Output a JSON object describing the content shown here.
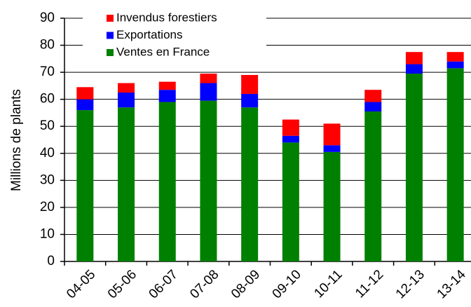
{
  "chart_data": {
    "type": "stacked_bar",
    "y_label": "Millions de plants",
    "categories": [
      "04-05",
      "05-06",
      "06-07",
      "07-08",
      "08-09",
      "09-10",
      "10-11",
      "11-12",
      "12-13",
      "13-14"
    ],
    "series": [
      {
        "name": "Ventes en France",
        "color": "#008000",
        "values": [
          56,
          57,
          59,
          59.5,
          57,
          44,
          40.5,
          55.5,
          69.5,
          71.5
        ]
      },
      {
        "name": "Exportations",
        "color": "#0000ff",
        "values": [
          4,
          5.5,
          4.5,
          6.5,
          5,
          2.5,
          2.5,
          3.5,
          3.5,
          2.5
        ]
      },
      {
        "name": "Invendus forestiers",
        "color": "#ff0000",
        "values": [
          4.5,
          3.5,
          3,
          3.5,
          7,
          6,
          8,
          4.5,
          4.5,
          3.5
        ]
      }
    ],
    "ylim": [
      0,
      90
    ],
    "yticks": [
      0,
      10,
      20,
      30,
      40,
      50,
      60,
      70,
      80,
      90
    ],
    "grid": true
  }
}
